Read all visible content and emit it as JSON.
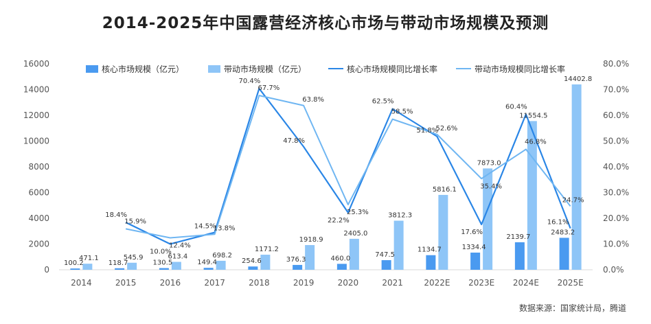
{
  "chart_data": {
    "type": "bar",
    "title": "2014-2025年中国露营经济核心市场与带动市场规模及预测",
    "source": "数据来源：国家统计局，腾道",
    "categories": [
      "2014",
      "2015",
      "2016",
      "2017",
      "2018",
      "2019",
      "2020",
      "2021",
      "2022E",
      "2023E",
      "2024E",
      "2025E"
    ],
    "series": [
      {
        "name": "核心市场规模（亿元）",
        "kind": "bar",
        "axis": "left",
        "color": "#4a9af0",
        "values": [
          100.2,
          118.7,
          130.5,
          149.4,
          254.6,
          376.3,
          460.0,
          747.5,
          1134.7,
          1334.4,
          2139.7,
          2483.2
        ],
        "labels": [
          "100.2",
          "118.7",
          "130.5",
          "149.4",
          "254.6",
          "376.3",
          "460.0",
          "747.5",
          "1134.7",
          "1334.4",
          "2139.7",
          "2483.2"
        ]
      },
      {
        "name": "带动市场规模（亿元）",
        "kind": "bar",
        "axis": "left",
        "color": "#8ec5f7",
        "values": [
          471.1,
          545.9,
          613.4,
          698.2,
          1171.2,
          1918.9,
          2405.0,
          3812.3,
          5816.1,
          7873.0,
          11554.5,
          14402.8
        ],
        "labels": [
          "471.1",
          "545.9",
          "613.4",
          "698.2",
          "1171.2",
          "1918.9",
          "2405.0",
          "3812.3",
          "5816.1",
          "7873.0",
          "11554.5",
          "14402.8"
        ]
      },
      {
        "name": "核心市场规模同比增长率",
        "kind": "line",
        "axis": "right",
        "color": "#2a86e6",
        "values": [
          null,
          18.4,
          10.0,
          14.5,
          70.4,
          47.8,
          22.2,
          62.5,
          51.8,
          17.6,
          60.4,
          16.1
        ],
        "labels": [
          "",
          "18.4%",
          "10.0%",
          "14.5%",
          "70.4%",
          "47.8%",
          "22.2%",
          "62.5%",
          "51.8%",
          "17.6%",
          "60.4%",
          "16.1%"
        ]
      },
      {
        "name": "带动市场规模同比增长率",
        "kind": "line",
        "axis": "right",
        "color": "#6fb6f2",
        "values": [
          null,
          15.9,
          12.4,
          13.8,
          67.7,
          63.8,
          25.3,
          58.5,
          52.6,
          35.4,
          46.8,
          24.7
        ],
        "labels": [
          "",
          "15.9%",
          "12.4%",
          "13.8%",
          "67.7%",
          "63.8%",
          "25.3%",
          "58.5%",
          "52.6%",
          "35.4%",
          "46.8%",
          "24.7%"
        ]
      }
    ],
    "y_left": {
      "min": 0,
      "max": 16000,
      "ticks": [
        "0",
        "2000",
        "4000",
        "6000",
        "8000",
        "10000",
        "12000",
        "14000",
        "16000"
      ]
    },
    "y_right": {
      "min": 0,
      "max": 80,
      "ticks": [
        "0.0%",
        "10.0%",
        "20.0%",
        "30.0%",
        "40.0%",
        "50.0%",
        "60.0%",
        "70.0%",
        "80.0%"
      ]
    },
    "legend_position": "top",
    "grid": false
  }
}
